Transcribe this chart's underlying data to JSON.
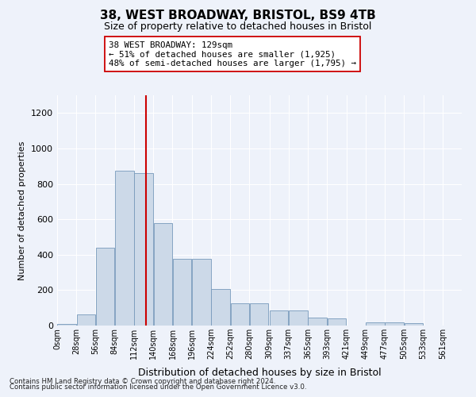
{
  "title1": "38, WEST BROADWAY, BRISTOL, BS9 4TB",
  "title2": "Size of property relative to detached houses in Bristol",
  "xlabel": "Distribution of detached houses by size in Bristol",
  "ylabel": "Number of detached properties",
  "annotation_title": "38 WEST BROADWAY: 129sqm",
  "annotation_line1": "← 51% of detached houses are smaller (1,925)",
  "annotation_line2": "48% of semi-detached houses are larger (1,795) →",
  "property_sqm": 129,
  "footnote1": "Contains HM Land Registry data © Crown copyright and database right 2024.",
  "footnote2": "Contains public sector information licensed under the Open Government Licence v3.0.",
  "bin_labels": [
    "0sqm",
    "28sqm",
    "56sqm",
    "84sqm",
    "112sqm",
    "140sqm",
    "168sqm",
    "196sqm",
    "224sqm",
    "252sqm",
    "280sqm",
    "309sqm",
    "337sqm",
    "365sqm",
    "393sqm",
    "421sqm",
    "449sqm",
    "477sqm",
    "505sqm",
    "533sqm",
    "561sqm"
  ],
  "bin_edges": [
    0,
    28,
    56,
    84,
    112,
    140,
    168,
    196,
    224,
    252,
    280,
    309,
    337,
    365,
    393,
    421,
    449,
    477,
    505,
    533,
    561
  ],
  "bar_heights": [
    10,
    65,
    440,
    875,
    860,
    580,
    375,
    375,
    205,
    125,
    125,
    85,
    85,
    45,
    40,
    0,
    20,
    18,
    12,
    0,
    0
  ],
  "bar_color": "#ccd9e8",
  "bar_edge_color": "#7799bb",
  "vline_color": "#cc0000",
  "vline_x": 129,
  "annotation_box_color": "#ffffff",
  "annotation_box_edge": "#cc0000",
  "ylim": [
    0,
    1300
  ],
  "yticks": [
    0,
    200,
    400,
    600,
    800,
    1000,
    1200
  ],
  "background_color": "#eef2fa",
  "grid_color": "#ffffff"
}
